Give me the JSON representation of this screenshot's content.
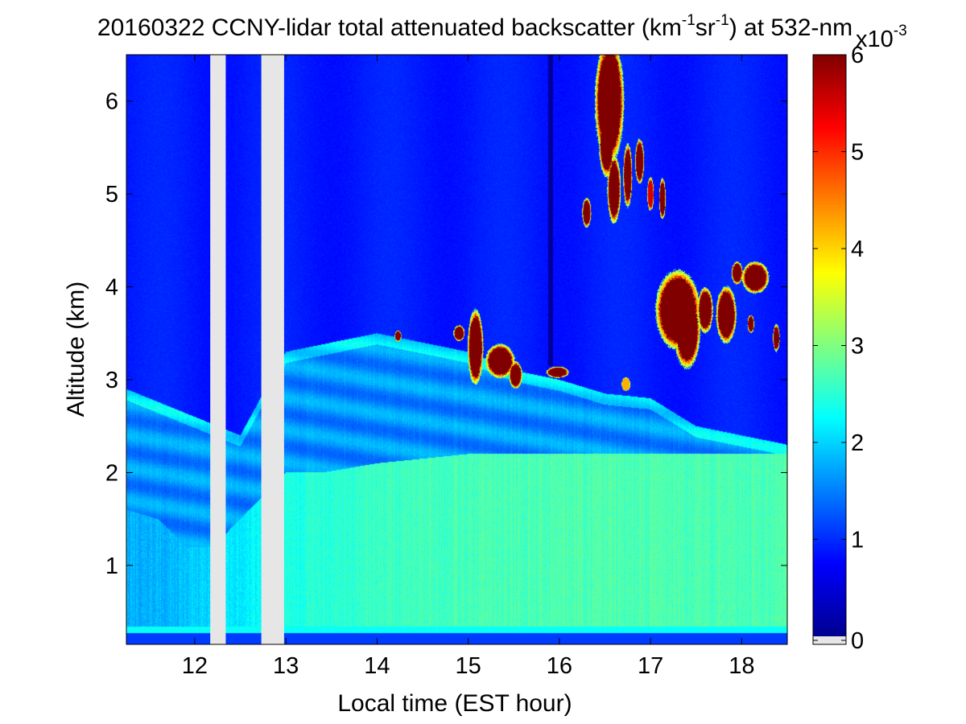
{
  "chart_data": {
    "type": "heatmap",
    "title": {
      "parts": [
        {
          "text": "20160322 CCNY-lidar total attenuated backscatter (km",
          "sup": false
        },
        {
          "text": "-1",
          "sup": true
        },
        {
          "text": "sr",
          "sup": false
        },
        {
          "text": "-1",
          "sup": true
        },
        {
          "text": ") at 532-nm",
          "sup": false
        }
      ]
    },
    "xlabel": "Local time (EST hour)",
    "ylabel": "Altitude (km)",
    "xlim": [
      11.25,
      18.5
    ],
    "ylim": [
      0.15,
      6.5
    ],
    "x_ticks": [
      12,
      13,
      14,
      15,
      16,
      17,
      18
    ],
    "y_ticks": [
      1,
      2,
      3,
      4,
      5,
      6
    ],
    "grid": false,
    "colormap": "jet",
    "colorbar": {
      "range": [
        0,
        0.006
      ],
      "ticks": [
        0,
        1,
        2,
        3,
        4,
        5,
        6
      ],
      "exponent_base": "x10",
      "exponent": "-3",
      "missing_color": "#e6e6e6"
    },
    "ground_level_km": 0.27,
    "background_level": 0.9,
    "missing_data_intervals": [
      [
        12.17,
        12.34
      ],
      [
        12.73,
        12.98
      ]
    ],
    "signal_dropout": {
      "x": 15.9,
      "from_km": 3.15,
      "to_km": 6.5
    },
    "aerosol_layer": {
      "x": [
        11.25,
        11.5,
        12.0,
        12.5,
        13.0,
        13.5,
        14.0,
        14.5,
        15.0,
        15.5,
        16.0,
        16.5,
        17.0,
        17.5,
        18.0,
        18.5
      ],
      "top_km": [
        2.9,
        2.8,
        2.6,
        2.4,
        3.3,
        3.4,
        3.5,
        3.4,
        3.3,
        3.1,
        3.0,
        2.85,
        2.8,
        2.5,
        2.4,
        2.3
      ],
      "interior_level": 1.6,
      "top_edge_level": 2.1
    },
    "boundary_layer": {
      "x": [
        11.25,
        11.6,
        11.9,
        12.2,
        13.0,
        13.4,
        14.0,
        15.0,
        16.0,
        17.0,
        18.0,
        18.5
      ],
      "top_km": [
        1.6,
        1.5,
        1.2,
        1.2,
        2.0,
        2.0,
        2.1,
        2.2,
        2.2,
        2.2,
        2.2,
        2.2
      ],
      "level": [
        1.8,
        1.8,
        1.9,
        2.0,
        2.4,
        2.5,
        2.6,
        2.65,
        2.7,
        2.7,
        2.7,
        2.7
      ]
    },
    "clouds": [
      {
        "x": 14.23,
        "y": 3.47,
        "rx": 0.03,
        "ry": 0.05,
        "value": 6
      },
      {
        "x": 14.9,
        "y": 3.5,
        "rx": 0.05,
        "ry": 0.07,
        "value": 6
      },
      {
        "x": 15.08,
        "y": 3.35,
        "rx": 0.07,
        "ry": 0.33,
        "value": 6
      },
      {
        "x": 15.35,
        "y": 3.2,
        "rx": 0.13,
        "ry": 0.15,
        "value": 6
      },
      {
        "x": 15.52,
        "y": 3.05,
        "rx": 0.06,
        "ry": 0.12,
        "value": 6
      },
      {
        "x": 15.98,
        "y": 3.08,
        "rx": 0.1,
        "ry": 0.05,
        "value": 6
      },
      {
        "x": 16.73,
        "y": 2.95,
        "rx": 0.04,
        "ry": 0.06,
        "value": 4.2
      },
      {
        "x": 16.55,
        "y": 6.0,
        "rx": 0.13,
        "ry": 0.55,
        "value": 6
      },
      {
        "x": 16.52,
        "y": 5.55,
        "rx": 0.07,
        "ry": 0.3,
        "value": 6
      },
      {
        "x": 16.3,
        "y": 4.8,
        "rx": 0.04,
        "ry": 0.13,
        "value": 6
      },
      {
        "x": 16.6,
        "y": 5.05,
        "rx": 0.06,
        "ry": 0.3,
        "value": 6
      },
      {
        "x": 16.75,
        "y": 5.2,
        "rx": 0.04,
        "ry": 0.28,
        "value": 6
      },
      {
        "x": 16.88,
        "y": 5.35,
        "rx": 0.04,
        "ry": 0.2,
        "value": 6
      },
      {
        "x": 17.0,
        "y": 5.0,
        "rx": 0.03,
        "ry": 0.15,
        "value": 5.5
      },
      {
        "x": 17.13,
        "y": 4.95,
        "rx": 0.03,
        "ry": 0.18,
        "value": 6
      },
      {
        "x": 17.3,
        "y": 3.75,
        "rx": 0.2,
        "ry": 0.35,
        "value": 6
      },
      {
        "x": 17.4,
        "y": 3.55,
        "rx": 0.12,
        "ry": 0.35,
        "value": 6
      },
      {
        "x": 17.6,
        "y": 3.75,
        "rx": 0.07,
        "ry": 0.2,
        "value": 6
      },
      {
        "x": 17.83,
        "y": 3.7,
        "rx": 0.09,
        "ry": 0.25,
        "value": 6
      },
      {
        "x": 17.95,
        "y": 4.15,
        "rx": 0.05,
        "ry": 0.1,
        "value": 6
      },
      {
        "x": 18.15,
        "y": 4.1,
        "rx": 0.12,
        "ry": 0.14,
        "value": 6
      },
      {
        "x": 18.38,
        "y": 3.45,
        "rx": 0.03,
        "ry": 0.12,
        "value": 6
      },
      {
        "x": 18.1,
        "y": 3.6,
        "rx": 0.03,
        "ry": 0.08,
        "value": 6
      }
    ]
  }
}
